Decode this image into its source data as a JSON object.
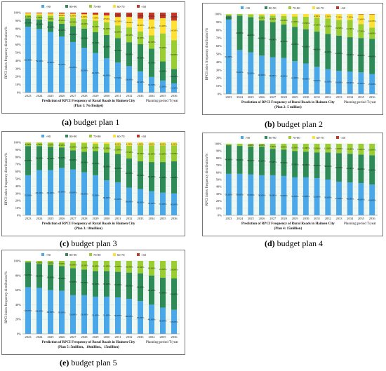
{
  "chart_data": [
    {
      "type": "bar",
      "stacked": true,
      "categories": [
        "2023",
        "2024",
        "2025",
        "2026",
        "2027",
        "2028",
        "2029",
        "2030",
        "2031",
        "2032",
        "2033",
        "2034",
        "2035",
        "2036"
      ],
      "ylabel": "RPCI index frequency distribution/%",
      "yticks": [
        "0%",
        "10%",
        "20%",
        "30%",
        "40%",
        "50%",
        "60%",
        "70%",
        "80%",
        "90%",
        "100%"
      ],
      "xlabel": "Planning period T/year",
      "title": "Prediction of RPCI Frequency of Rural Roads in Haimen City",
      "subtitle": "(Plan 1: No Budget)",
      "legend_position": "top",
      "series": [
        {
          "name": ">90",
          "color": "#4aa8e8",
          "values": [
            82.3,
            79.5,
            75.8,
            70.2,
            63.2,
            56.0,
            49.5,
            43.0,
            37.5,
            33.0,
            26.5,
            19.5,
            15.0,
            11.5
          ]
        },
        {
          "name": "80-90",
          "color": "#2e8b57",
          "values": [
            10.5,
            12.0,
            13.2,
            16.0,
            20.0,
            24.0,
            26.0,
            29.0,
            30.5,
            30.0,
            34.0,
            35.5,
            24.0,
            18.0
          ]
        },
        {
          "name": "70-80",
          "color": "#9acd32",
          "values": [
            4.5,
            5.5,
            7.0,
            8.5,
            10.5,
            12.0,
            14.5,
            16.0,
            16.0,
            18.5,
            16.0,
            16.5,
            35.0,
            36.0
          ]
        },
        {
          "name": "60-70",
          "color": "#ffe135",
          "values": [
            2.0,
            2.0,
            3.0,
            4.0,
            5.0,
            6.0,
            7.5,
            8.5,
            10.5,
            13.0,
            16.0,
            20.0,
            19.0,
            24.5
          ]
        },
        {
          "name": "<60",
          "color": "#c0392b",
          "values": [
            0.7,
            1.0,
            1.0,
            1.3,
            1.3,
            2.0,
            2.5,
            3.5,
            5.5,
            5.5,
            7.5,
            8.5,
            7.0,
            10.0
          ]
        }
      ]
    },
    {
      "type": "bar",
      "stacked": true,
      "categories": [
        "2023",
        "2024",
        "2025",
        "2026",
        "2027",
        "2028",
        "2029",
        "2030",
        "2031",
        "2032",
        "2033",
        "2034",
        "2035",
        "2036"
      ],
      "ylabel": "RPCI index frequency distribution/%",
      "yticks": [
        "0%",
        "10%",
        "20%",
        "30%",
        "40%",
        "50%",
        "60%",
        "70%",
        "80%",
        "90%",
        "100%"
      ],
      "xlabel": "Planning period T/year",
      "title": "Prediction of RPCI Frequency of Rural Roads in Haimen City",
      "subtitle": "(Plan 2: 5 million)",
      "legend_position": "top",
      "series": [
        {
          "name": ">90",
          "color": "#4aa8e8",
          "values": [
            93.0,
            55.0,
            52.0,
            48.0,
            46.0,
            45.0,
            41.0,
            38.0,
            34.0,
            31.0,
            29.0,
            28.0,
            27.0,
            25.0
          ]
        },
        {
          "name": "80-90",
          "color": "#2e8b57",
          "values": [
            5.0,
            43.0,
            44.0,
            44.0,
            44.0,
            42.0,
            43.0,
            43.0,
            44.0,
            44.0,
            44.0,
            43.0,
            43.0,
            44.0
          ]
        },
        {
          "name": "70-80",
          "color": "#9acd32",
          "values": [
            1.5,
            2.0,
            3.5,
            6.5,
            8.0,
            10.5,
            13.0,
            15.5,
            17.5,
            19.5,
            19.5,
            21.5,
            17.5,
            14.0
          ]
        },
        {
          "name": "60-70",
          "color": "#ffe135",
          "values": [
            0.5,
            0.0,
            0.5,
            1.5,
            2.0,
            2.5,
            3.0,
            3.5,
            4.5,
            5.5,
            7.5,
            7.5,
            12.0,
            16.5
          ]
        },
        {
          "name": "<60",
          "color": "#c0392b",
          "values": [
            0,
            0,
            0,
            0,
            0,
            0,
            0,
            0,
            0,
            0,
            0,
            0,
            0.5,
            0.5
          ]
        }
      ]
    },
    {
      "type": "bar",
      "stacked": true,
      "categories": [
        "2023",
        "2024",
        "2025",
        "2026",
        "2027",
        "2028",
        "2029",
        "2030",
        "2031",
        "2032",
        "2033",
        "2034",
        "2035",
        "2036"
      ],
      "ylabel": "RPCI index frequency distribution/%",
      "yticks": [
        "0%",
        "10%",
        "20%",
        "30%",
        "40%",
        "50%",
        "60%",
        "70%",
        "80%",
        "90%",
        "100%"
      ],
      "xlabel": "",
      "title": "Prediction of RPCI Frequency of Rural Roads in Haimen City",
      "subtitle": "(Plan 3: 10million)",
      "legend_position": "top",
      "series": [
        {
          "name": ">90",
          "color": "#4aa8e8",
          "values": [
            55.0,
            62.0,
            62.0,
            65.0,
            63.0,
            59.0,
            55.0,
            48.0,
            45.0,
            38.0,
            36.0,
            33.0,
            31.0,
            30.0
          ]
        },
        {
          "name": "80-90",
          "color": "#2e8b57",
          "values": [
            40.0,
            33.0,
            32.0,
            28.0,
            26.0,
            28.0,
            33.0,
            38.0,
            39.0,
            40.0,
            38.0,
            40.0,
            42.0,
            44.0
          ]
        },
        {
          "name": "70-80",
          "color": "#9acd32",
          "values": [
            4.5,
            4.5,
            5.5,
            6.5,
            10.0,
            12.0,
            10.0,
            12.0,
            12.0,
            17.5,
            22.0,
            23.0,
            23.0,
            22.0
          ]
        },
        {
          "name": "60-70",
          "color": "#ffe135",
          "values": [
            0.5,
            0.5,
            0.5,
            0.5,
            1.0,
            1.0,
            2.0,
            2.0,
            4.0,
            4.5,
            4.0,
            4.0,
            4.0,
            4.0
          ]
        },
        {
          "name": "<60",
          "color": "#c0392b",
          "values": [
            0,
            0,
            0,
            0,
            0,
            0,
            0,
            0,
            0,
            0,
            0,
            0,
            0,
            0
          ]
        }
      ]
    },
    {
      "type": "bar",
      "stacked": true,
      "categories": [
        "2023",
        "2024",
        "2025",
        "2026",
        "2027",
        "2028",
        "2029",
        "2030",
        "2031",
        "2032",
        "2033",
        "2034",
        "2035",
        "2036"
      ],
      "ylabel": "RPCI index frequency distribution/%",
      "yticks": [
        "0%",
        "10%",
        "20%",
        "30%",
        "40%",
        "50%",
        "60%",
        "70%",
        "80%",
        "90%",
        "100%"
      ],
      "xlabel": "Planning period T/year",
      "title": "Prediction of RPCI Frequency of Rural Roads in Haimen City",
      "subtitle": "(Plan 4: 15million)",
      "legend_position": "top",
      "series": [
        {
          "name": ">90",
          "color": "#4aa8e8",
          "values": [
            58.0,
            58.0,
            57.0,
            56.0,
            56.0,
            55.0,
            53.0,
            53.0,
            52.0,
            50.0,
            47.0,
            46.0,
            45.0,
            43.0
          ]
        },
        {
          "name": "80-90",
          "color": "#2e8b57",
          "values": [
            40.0,
            39.0,
            39.0,
            40.0,
            37.0,
            37.0,
            37.0,
            36.0,
            36.0,
            38.0,
            40.0,
            40.0,
            40.0,
            41.0
          ]
        },
        {
          "name": "70-80",
          "color": "#9acd32",
          "values": [
            2.0,
            3.0,
            4.0,
            4.0,
            7.0,
            8.0,
            10.0,
            11.0,
            12.0,
            12.0,
            13.0,
            14.0,
            15.0,
            16.0
          ]
        },
        {
          "name": "60-70",
          "color": "#ffe135",
          "values": [
            0,
            0,
            0,
            0,
            0,
            0,
            0,
            0,
            0,
            0,
            0,
            0,
            0,
            0
          ]
        },
        {
          "name": "<60",
          "color": "#c0392b",
          "values": [
            0,
            0,
            0,
            0,
            0,
            0,
            0,
            0,
            0,
            0,
            0,
            0,
            0,
            0
          ]
        }
      ]
    },
    {
      "type": "bar",
      "stacked": true,
      "categories": [
        "2023",
        "2024",
        "2025",
        "2026",
        "2027",
        "2028",
        "2029",
        "2030",
        "2031",
        "2032",
        "2033",
        "2034",
        "2035",
        "2036"
      ],
      "ylabel": "RPCI index frequency distribution/%",
      "yticks": [
        "0%",
        "20%",
        "40%",
        "60%",
        "80%",
        "100%"
      ],
      "xlabel": "Planning period T/year",
      "title": "Prediction of RPCI Frequency of Rural Roads in Haimen City",
      "subtitle": "(Plan 5: 5million、10million、15million)",
      "legend_position": "top",
      "series": [
        {
          "name": ">90",
          "color": "#4aa8e8",
          "values": [
            64.0,
            63.0,
            60.0,
            59.0,
            53.0,
            53.0,
            51.0,
            51.0,
            50.0,
            48.0,
            45.0,
            40.0,
            36.0,
            33.0
          ]
        },
        {
          "name": "80-90",
          "color": "#2e8b57",
          "values": [
            34.0,
            33.0,
            35.0,
            34.0,
            37.0,
            35.0,
            35.0,
            35.0,
            35.0,
            36.0,
            38.0,
            40.0,
            41.0,
            43.0
          ]
        },
        {
          "name": "70-80",
          "color": "#9acd32",
          "values": [
            2.0,
            4.0,
            5.0,
            7.0,
            10.0,
            12.0,
            14.0,
            14.0,
            15.0,
            16.0,
            17.0,
            20.0,
            23.0,
            24.0
          ]
        },
        {
          "name": "60-70",
          "color": "#ffe135",
          "values": [
            0,
            0,
            0,
            0,
            0,
            0,
            0,
            0,
            0,
            0,
            0,
            0,
            0,
            0
          ]
        },
        {
          "name": "<60",
          "color": "#c0392b",
          "values": [
            0,
            0,
            0,
            0,
            0,
            0,
            0,
            0,
            0,
            0,
            0,
            0,
            0,
            0
          ]
        }
      ]
    }
  ],
  "captions": [
    {
      "letter": "(a)",
      "text": " budget plan 1"
    },
    {
      "letter": "(b)",
      "text": " budget plan 2"
    },
    {
      "letter": "(c)",
      "text": " budget plan 3"
    },
    {
      "letter": "(d)",
      "text": " budget plan 4"
    },
    {
      "letter": "(e)",
      "text": " budget plan 5"
    }
  ]
}
